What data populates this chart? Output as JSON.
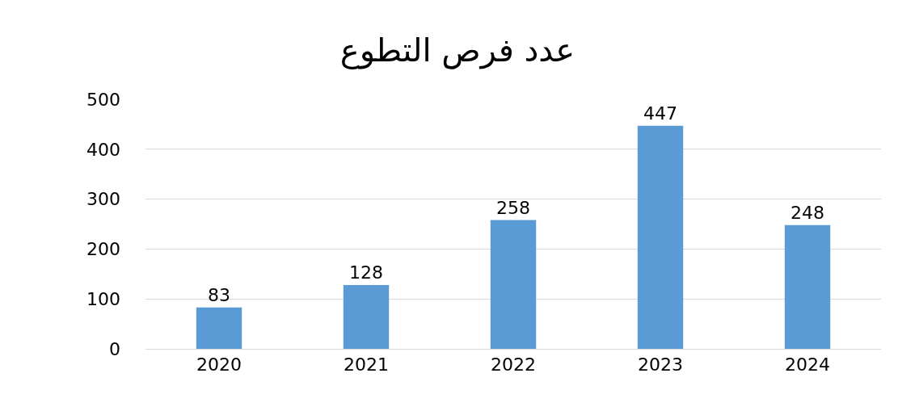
{
  "chart_data": {
    "type": "bar",
    "title": "عدد فرص التطوع",
    "categories": [
      "2020",
      "2021",
      "2022",
      "2023",
      "2024"
    ],
    "values": [
      83,
      128,
      258,
      447,
      248
    ],
    "color": "#5b9bd5",
    "ylim": [
      0,
      500
    ],
    "yticks": [
      0,
      100,
      200,
      300,
      400,
      500
    ],
    "grid": "y",
    "data_labels": true,
    "legend": false
  }
}
